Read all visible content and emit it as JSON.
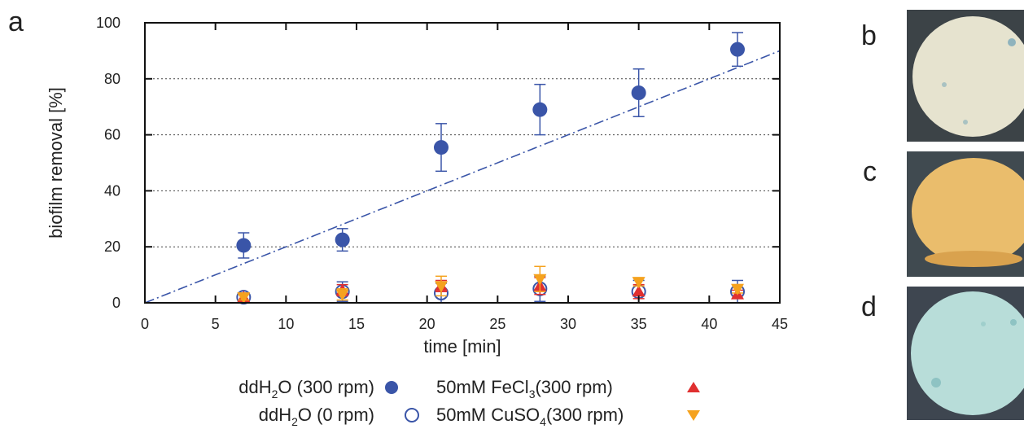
{
  "panel_labels": {
    "a": "a",
    "b": "b",
    "c": "c",
    "d": "d"
  },
  "colors": {
    "blue": "#3a55a8",
    "red": "#e03030",
    "orange": "#f5a21e",
    "grid": "#444444",
    "photo_b_disc": "#e6e3cf",
    "photo_b_bg": "#3c4347",
    "photo_c_disc": "#eabd6c",
    "photo_c_bg": "#404a50",
    "photo_d_disc": "#b8ddd9",
    "photo_d_bg": "#3e4650"
  },
  "legend": {
    "row1_left_main": "ddH",
    "row1_left_sub": "2",
    "row1_left_rest": "O (300 rpm)",
    "row1_right_main": "50mM FeCl",
    "row1_right_sub": "3",
    "row1_right_rest": "(300 rpm)",
    "row2_left_main": "ddH",
    "row2_left_sub": "2",
    "row2_left_rest": "O (0 rpm)",
    "row2_right_main": "50mM CuSO",
    "row2_right_sub": "4",
    "row2_right_rest": "(300 rpm)"
  },
  "chart_data": {
    "type": "scatter",
    "xlabel": "time [min]",
    "ylabel": "biofilm removal [%]",
    "xlim": [
      0,
      45
    ],
    "ylim": [
      0,
      100
    ],
    "xticks": [
      0,
      5,
      10,
      15,
      20,
      25,
      30,
      35,
      40,
      45
    ],
    "yticks": [
      0,
      20,
      40,
      60,
      80,
      100
    ],
    "grid": "horizontal dotted",
    "series": [
      {
        "name": "ddH2O (300 rpm)",
        "marker": "filled-circle",
        "color": "#3a55a8",
        "x": [
          7,
          14,
          21,
          28,
          35,
          42
        ],
        "y": [
          20.5,
          22.5,
          55.5,
          69,
          75,
          90.5
        ],
        "err": [
          4.5,
          4,
          8.5,
          9,
          8.5,
          6
        ]
      },
      {
        "name": "ddH2O (0 rpm)",
        "marker": "open-circle",
        "color": "#3a55a8",
        "x": [
          7,
          14,
          21,
          28,
          35,
          42
        ],
        "y": [
          2,
          4,
          3.5,
          5,
          4,
          4
        ],
        "err": [
          1.5,
          3.5,
          3.5,
          4.5,
          4,
          4
        ]
      },
      {
        "name": "50mM FeCl3(300 rpm)",
        "marker": "triangle-up",
        "color": "#e03030",
        "x": [
          7,
          14,
          21,
          28,
          35,
          42
        ],
        "y": [
          2,
          4.5,
          6,
          6,
          4,
          3
        ],
        "err": [
          1,
          2,
          2,
          3,
          2.5,
          1.5
        ]
      },
      {
        "name": "50mM CuSO4(300 rpm)",
        "marker": "triangle-down",
        "color": "#f5a21e",
        "x": [
          7,
          14,
          21,
          28,
          35,
          42
        ],
        "y": [
          2,
          3,
          6,
          8.5,
          7.5,
          5
        ],
        "err": [
          1,
          2,
          3.5,
          4.5,
          1.5,
          1.5
        ]
      }
    ],
    "fit_line": {
      "style": "dash-dot",
      "color": "#3a55a8",
      "x": [
        0,
        45
      ],
      "y": [
        0,
        90
      ]
    }
  }
}
